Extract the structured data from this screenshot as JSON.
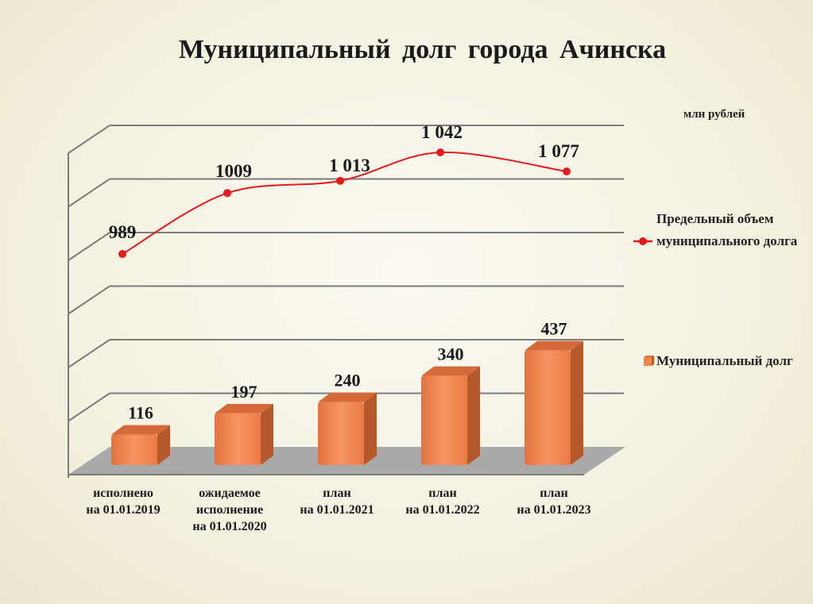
{
  "title": "Муниципальный  долг  города Ачинска",
  "unit": "млн рублей",
  "legend": {
    "line_label": "Предельный объем муниципального долга",
    "bar_label": "Муниципальный долг"
  },
  "colors": {
    "line": "#e21c1c",
    "bar_front": "#f0844f",
    "bar_side": "#b5582c",
    "bar_top": "#d46a3a",
    "floor": "#a9a9a9"
  },
  "chart_data": {
    "type": "bar+line",
    "categories": [
      [
        "исполнено",
        "на 01.01.2019"
      ],
      [
        "ожидаемое",
        "исполнение",
        "на 01.01.2020"
      ],
      [
        "план",
        "на 01.01.2021"
      ],
      [
        "план",
        "на 01.01.2022"
      ],
      [
        "план",
        "на 01.01.2023"
      ]
    ],
    "series": [
      {
        "name": "Муниципальный долг",
        "type": "bar",
        "values": [
          116,
          197,
          240,
          340,
          437
        ],
        "labels": [
          "116",
          "197",
          "240",
          "340",
          "437"
        ]
      },
      {
        "name": "Предельный объем муниципального долга",
        "type": "line",
        "values": [
          989,
          1009,
          1013,
          1042,
          1077
        ],
        "labels": [
          "989",
          "1009",
          "1 013",
          "1 042",
          "1 077"
        ]
      }
    ],
    "grid": true,
    "legend_position": "right"
  }
}
